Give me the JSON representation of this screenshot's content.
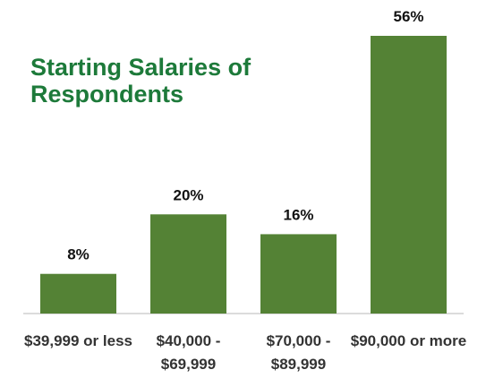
{
  "chart_data": {
    "type": "bar",
    "title": "Starting Salaries of Respondents",
    "categories": [
      "$39,999 or less",
      "$40,000 - $69,999",
      "$70,000 - $89,999",
      "$90,000 or more"
    ],
    "values": [
      8,
      20,
      16,
      56
    ],
    "value_labels": [
      "8%",
      "20%",
      "16%",
      "56%"
    ],
    "color": "#548235"
  }
}
